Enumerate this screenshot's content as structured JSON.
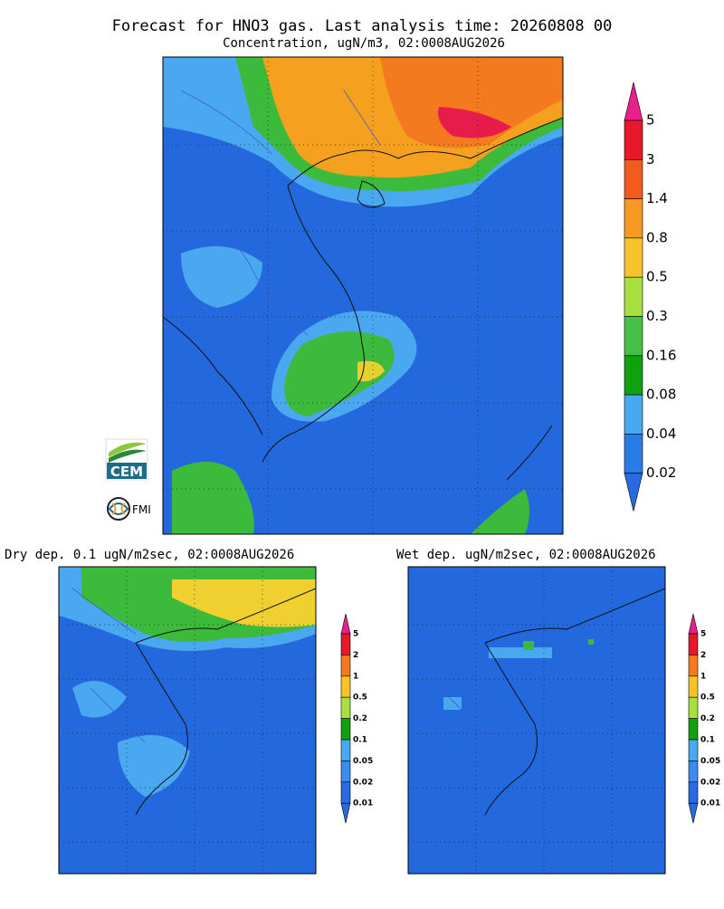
{
  "title": "Forecast for HNO3 gas. Last analysis time: 20260808 00",
  "main": {
    "subtitle": "Concentration, ugN/m3, 02:0008AUG2026",
    "colorbar": [
      "5",
      "3",
      "1.4",
      "0.8",
      "0.5",
      "0.3",
      "0.16",
      "0.08",
      "0.04",
      "0.02"
    ]
  },
  "dry": {
    "subtitle": "Dry dep. 0.1 ugN/m2sec, 02:0008AUG2026",
    "colorbar": [
      "5",
      "2",
      "1",
      "0.5",
      "0.2",
      "0.1",
      "0.05",
      "0.02",
      "0.01"
    ]
  },
  "wet": {
    "subtitle": "Wet dep. ugN/m2sec, 02:0008AUG2026",
    "colorbar": [
      "5",
      "2",
      "1",
      "0.5",
      "0.2",
      "0.1",
      "0.05",
      "0.02",
      "0.01"
    ]
  },
  "logos": {
    "cem": "CEM",
    "fmi": "FMI"
  }
}
